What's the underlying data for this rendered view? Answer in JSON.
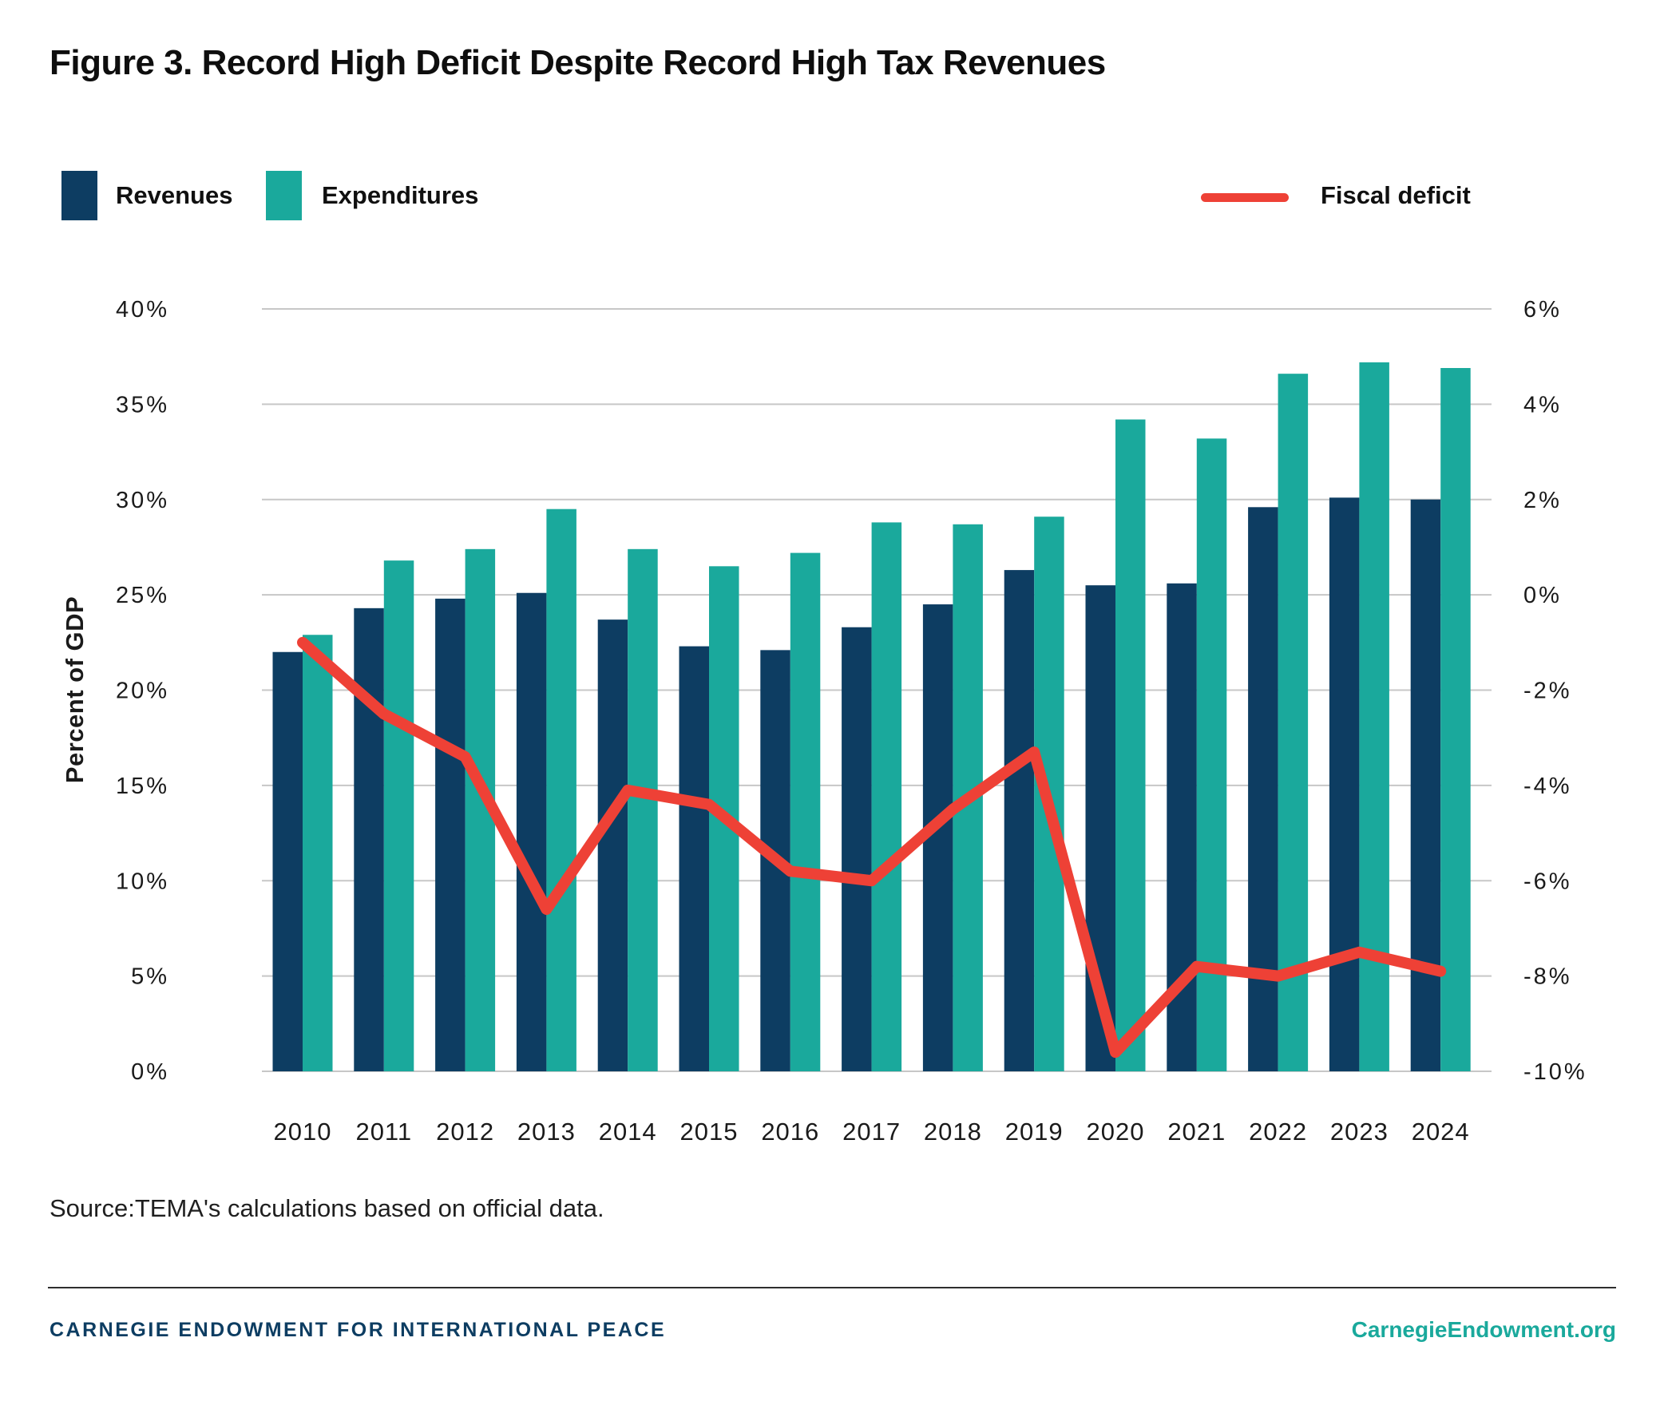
{
  "figure": {
    "title": "Figure 3. Record High Deficit Despite Record High Tax Revenues"
  },
  "legend": {
    "revenues": "Revenues",
    "expenditures": "Expenditures",
    "fiscal_deficit": "Fiscal deficit"
  },
  "colors": {
    "revenues": "#0d3d62",
    "expenditures": "#1aa99c",
    "deficit": "#ee4136",
    "grid": "#c7c7c7",
    "tick_text": "#1a1a1a",
    "footer_navy": "#0d3d62",
    "footer_teal": "#1aa99c"
  },
  "chart_data": {
    "type": "bar",
    "subtype": "grouped-bars-with-line",
    "title": "Figure 3. Record High Deficit Despite Record High Tax Revenues",
    "categories": [
      "2010",
      "2011",
      "2012",
      "2013",
      "2014",
      "2015",
      "2016",
      "2017",
      "2018",
      "2019",
      "2020",
      "2021",
      "2022",
      "2023",
      "2024"
    ],
    "series": [
      {
        "name": "Revenues",
        "type": "bar",
        "axis": "left",
        "color": "#0d3d62",
        "values": [
          22.0,
          24.3,
          24.8,
          25.1,
          23.7,
          22.3,
          22.1,
          23.3,
          24.5,
          26.3,
          25.5,
          25.6,
          29.6,
          30.1,
          30.0
        ]
      },
      {
        "name": "Expenditures",
        "type": "bar",
        "axis": "left",
        "color": "#1aa99c",
        "values": [
          22.9,
          26.8,
          27.4,
          29.5,
          27.4,
          26.5,
          27.2,
          28.8,
          28.7,
          29.1,
          34.2,
          33.2,
          36.6,
          37.2,
          36.9
        ]
      },
      {
        "name": "Fiscal deficit",
        "type": "line",
        "axis": "right",
        "color": "#ee4136",
        "values": [
          -1.0,
          -2.5,
          -3.4,
          -6.6,
          -4.1,
          -4.4,
          -5.8,
          -6.0,
          -4.5,
          -3.3,
          -9.6,
          -7.8,
          -8.0,
          -7.5,
          -7.9
        ]
      }
    ],
    "left_axis": {
      "label": "Percent of GDP",
      "min": 0,
      "max": 40,
      "step": 5,
      "tick_suffix": "%",
      "ticks": [
        "0%",
        "5%",
        "10%",
        "15%",
        "20%",
        "25%",
        "30%",
        "35%",
        "40%"
      ]
    },
    "right_axis": {
      "label": "",
      "min": -10,
      "max": 6,
      "step": 2,
      "tick_suffix": "%",
      "ticks": [
        "-10%",
        "-8%",
        "-6%",
        "-4%",
        "-2%",
        "0%",
        "2%",
        "4%",
        "6%"
      ]
    },
    "grid": true,
    "legend_position": "top"
  },
  "source": {
    "text": "Source:TEMA's calculations based on official data."
  },
  "footer": {
    "left": "CARNEGIE ENDOWMENT FOR INTERNATIONAL PEACE",
    "right": "CarnegieEndowment.org"
  }
}
